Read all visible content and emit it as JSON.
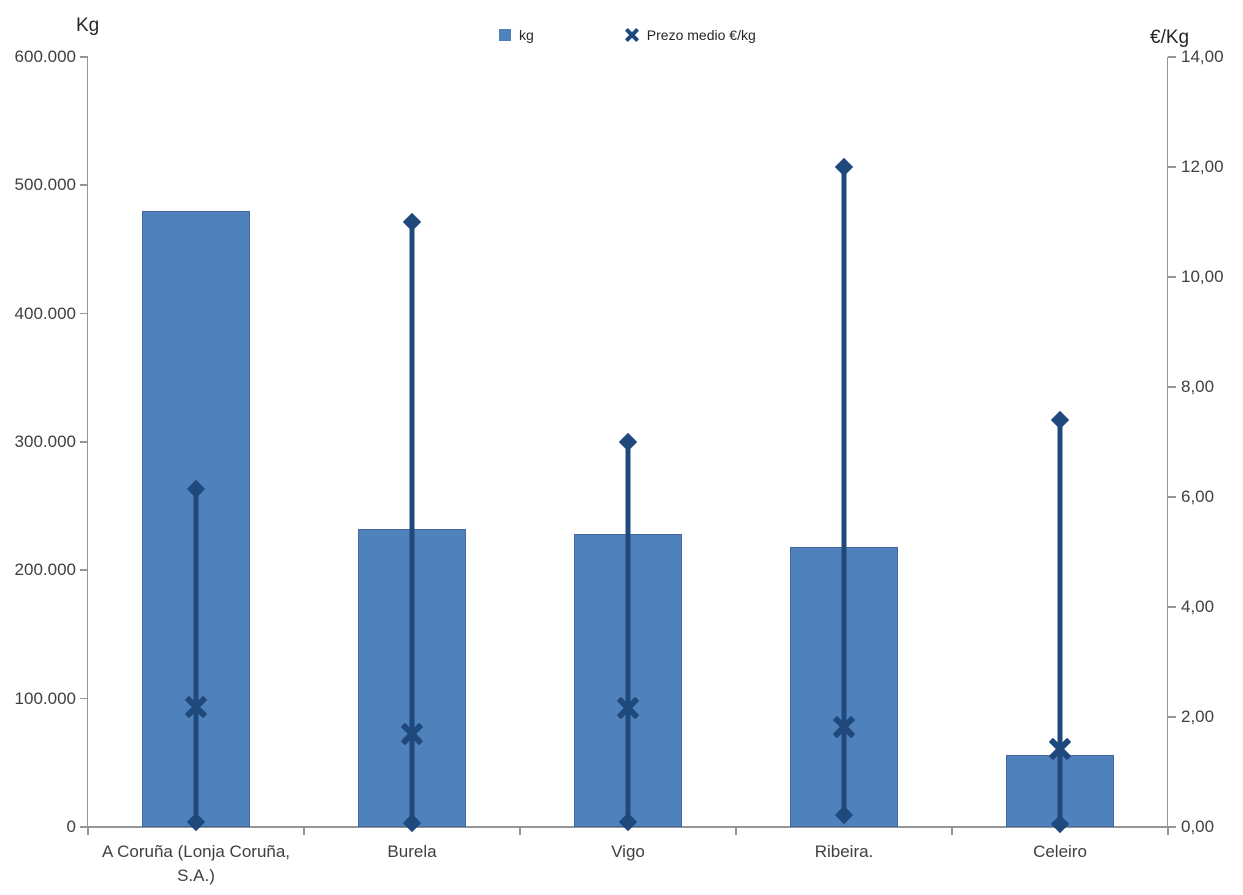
{
  "chart_data": {
    "type": "bar",
    "subtype": "bars with high-low price range lines and average-price X markers",
    "title": "",
    "categories": [
      "A Coruña (Lonja Coruña, S.A.)",
      "Burela",
      "Vigo",
      "Ribeira.",
      "Celeiro"
    ],
    "left_axis": {
      "title": "Kg",
      "min": 0,
      "max": 600000,
      "tick_step": 100000,
      "tick_labels_top_to_bottom": [
        "600.000",
        "500.000",
        "400.000",
        "300.000",
        "200.000",
        "100.000",
        "0"
      ]
    },
    "right_axis": {
      "title": "€/Kg",
      "min": 0,
      "max": 14,
      "tick_step": 2,
      "tick_labels_top_to_bottom": [
        "14,00",
        "12,00",
        "10,00",
        "8,00",
        "6,00",
        "4,00",
        "2,00",
        "0,00"
      ]
    },
    "legend": [
      {
        "label": "kg",
        "marker": "square",
        "color": "#4F81BD"
      },
      {
        "label": "Prezo medio €/kg",
        "marker": "x",
        "color": "#1F497D"
      }
    ],
    "legend_position": "top-center",
    "grid": "off",
    "series": [
      {
        "name": "kg",
        "type": "bar",
        "axis": "left",
        "color": "#4F81BD",
        "values": [
          480000,
          232000,
          228000,
          218000,
          56000
        ]
      },
      {
        "name": "Prezo medio €/kg",
        "type": "x-marker",
        "axis": "right",
        "color": "#1F497D",
        "values": [
          2.18,
          1.69,
          2.16,
          1.82,
          1.42
        ]
      },
      {
        "name": "price-range-high",
        "type": "hilo-top-diamond",
        "axis": "right",
        "color": "#1F497D",
        "values": [
          6.15,
          11.0,
          7.0,
          12.0,
          7.4
        ]
      },
      {
        "name": "price-range-low",
        "type": "hilo-bottom-diamond",
        "axis": "right",
        "color": "#1F497D",
        "values": [
          0.09,
          0.07,
          0.09,
          0.22,
          0.05
        ]
      }
    ],
    "colors": {
      "bar": "#4F81BD",
      "bar_border": "#44699C",
      "marker_line": "#1F497D",
      "axis_line": "#969696",
      "text": "#404040"
    }
  }
}
